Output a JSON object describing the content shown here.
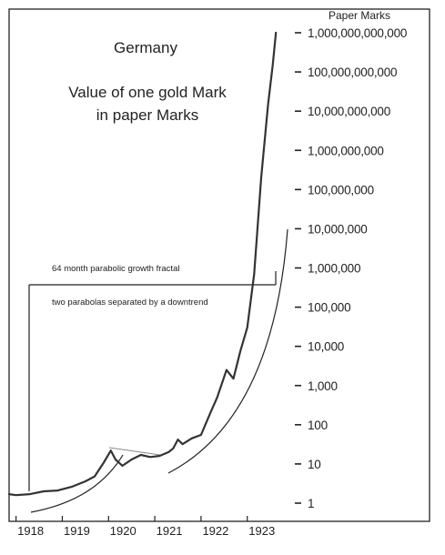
{
  "chart_data": {
    "type": "line",
    "title_lines": [
      "Germany",
      "Value of one gold Mark",
      "in paper Marks"
    ],
    "ylabel": "Paper Marks",
    "y_scale": "log10",
    "y_ticks": [
      {
        "value": 1,
        "label": "1"
      },
      {
        "value": 10,
        "label": "10"
      },
      {
        "value": 100,
        "label": "100"
      },
      {
        "value": 1000,
        "label": "1,000"
      },
      {
        "value": 10000,
        "label": "10,000"
      },
      {
        "value": 100000,
        "label": "100,000"
      },
      {
        "value": 1000000,
        "label": "1,000,000"
      },
      {
        "value": 10000000,
        "label": "10,000,000"
      },
      {
        "value": 100000000,
        "label": "100,000,000"
      },
      {
        "value": 1000000000,
        "label": "1,000,000,000"
      },
      {
        "value": 10000000000,
        "label": "10,000,000,000"
      },
      {
        "value": 100000000000,
        "label": "100,000,000,000"
      },
      {
        "value": 1000000000000,
        "label": "1,000,000,000,000"
      }
    ],
    "x_ticks": [
      {
        "value": 1918,
        "label": "1918"
      },
      {
        "value": 1919,
        "label": "1919"
      },
      {
        "value": 1920,
        "label": "1920"
      },
      {
        "value": 1921,
        "label": "1921"
      },
      {
        "value": 1922,
        "label": "1922"
      },
      {
        "value": 1923,
        "label": "1923"
      }
    ],
    "xlim": [
      1917.85,
      1923.95
    ],
    "ylim": [
      1,
      1000000000000
    ],
    "grid": false,
    "series": [
      {
        "color": "#333333",
        "points": [
          [
            1917.85,
            1.7
          ],
          [
            1918.0,
            1.6
          ],
          [
            1918.3,
            1.7
          ],
          [
            1918.6,
            2.0
          ],
          [
            1918.9,
            2.1
          ],
          [
            1919.2,
            2.6
          ],
          [
            1919.5,
            3.6
          ],
          [
            1919.7,
            4.8
          ],
          [
            1919.9,
            11
          ],
          [
            1920.05,
            22
          ],
          [
            1920.15,
            13
          ],
          [
            1920.3,
            9
          ],
          [
            1920.5,
            13
          ],
          [
            1920.7,
            17
          ],
          [
            1920.9,
            15
          ],
          [
            1921.1,
            16
          ],
          [
            1921.3,
            20
          ],
          [
            1921.4,
            25
          ],
          [
            1921.5,
            42
          ],
          [
            1921.6,
            32
          ],
          [
            1921.8,
            45
          ],
          [
            1922.0,
            55
          ],
          [
            1922.2,
            200
          ],
          [
            1922.35,
            500
          ],
          [
            1922.55,
            2500
          ],
          [
            1922.7,
            1500
          ],
          [
            1922.85,
            7500
          ],
          [
            1923.0,
            30000
          ],
          [
            1923.15,
            700000
          ],
          [
            1923.3,
            200000000
          ],
          [
            1923.45,
            15000000000
          ],
          [
            1923.55,
            150000000000
          ],
          [
            1923.62,
            1000000000000
          ]
        ]
      }
    ],
    "annotations": [
      {
        "text": "64 month parabolic growth fractal"
      },
      {
        "text": "two parabolas separated by a downtrend"
      }
    ]
  }
}
